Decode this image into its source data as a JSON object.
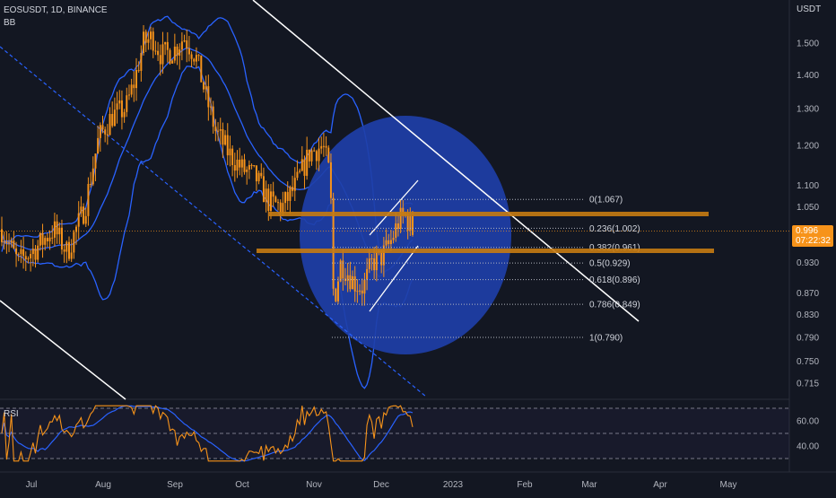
{
  "header": {
    "symbol": "EOSUSDT, 1D, BINANCE",
    "indicator": "BB",
    "currency": "USDT",
    "rsi_label": "RSI"
  },
  "price_badge": {
    "price": "0.996",
    "countdown": "07:22:32"
  },
  "colors": {
    "background": "#131722",
    "candle": "#f7931a",
    "bollinger": "#2962ff",
    "circle": "#1e3fa8",
    "fib_level": "#c77b12",
    "trendline": "#ffffff",
    "badge": "#f7931a",
    "rsi_line": "#f7931a",
    "rsi_ma": "#2962ff"
  },
  "chart_data": [
    {
      "type": "candlestick",
      "yscale": "log",
      "ylim": [
        0.69,
        1.62
      ],
      "y_ticks": [
        "1.500",
        "1.400",
        "1.300",
        "1.200",
        "1.100",
        "1.050",
        "0.930",
        "0.870",
        "0.830",
        "0.790",
        "0.750",
        "0.715"
      ],
      "y_tick_values": [
        1.5,
        1.4,
        1.3,
        1.2,
        1.1,
        1.05,
        0.93,
        0.87,
        0.83,
        0.79,
        0.75,
        0.715
      ],
      "x_ticks": [
        "Jul",
        "Aug",
        "Sep",
        "Oct",
        "Nov",
        "Dec",
        "2023",
        "Feb",
        "Mar",
        "Apr",
        "May"
      ],
      "fib_levels": [
        {
          "label": "0(1.067)",
          "value": 1.067
        },
        {
          "label": "0.236(1.002)",
          "value": 1.002
        },
        {
          "label": "0.382(0.961)",
          "value": 0.961
        },
        {
          "label": "0.5(0.929)",
          "value": 0.929
        },
        {
          "label": "0.618(0.896)",
          "value": 0.896
        },
        {
          "label": "0.786(0.849)",
          "value": 0.849
        },
        {
          "label": "1(0.790)",
          "value": 0.79
        }
      ],
      "last_price": 0.996
    },
    {
      "type": "line",
      "title": "RSI",
      "ylim": [
        25,
        75
      ],
      "y_ticks": [
        "60.00",
        "40.00"
      ],
      "y_tick_values": [
        60,
        40
      ],
      "bands": [
        70,
        50,
        30
      ]
    }
  ]
}
